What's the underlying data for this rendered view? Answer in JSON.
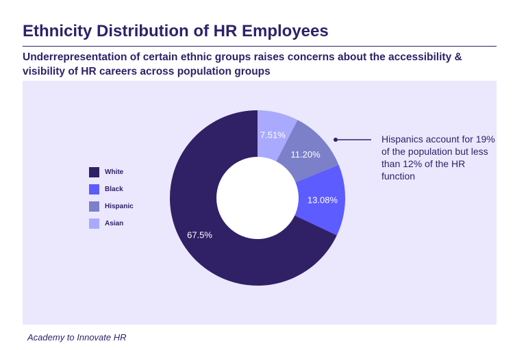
{
  "title": "Ethnicity Distribution of HR Employees",
  "subtitle": "Underrepresentation of certain ethnic groups raises concerns about the accessibility & visibility of HR careers across population groups",
  "annotation": "Hispanics account for 19% of the population but less than 12% of the HR function",
  "footer": "Academy to Innovate HR",
  "chart_data": {
    "type": "pie",
    "subtype": "donut",
    "categories": [
      "Asian",
      "Hispanic",
      "Black",
      "White"
    ],
    "values": [
      7.51,
      11.2,
      13.08,
      67.5
    ],
    "labels": [
      "7.51%",
      "11.20%",
      "13.08%",
      "67.5%"
    ],
    "colors": [
      "#a9aafd",
      "#7b80c9",
      "#5c5cff",
      "#302066"
    ],
    "start_angle": "top, clockwise",
    "legend": {
      "placement": "left",
      "items": [
        {
          "label": "White",
          "color": "#302066"
        },
        {
          "label": "Black",
          "color": "#5c5cff"
        },
        {
          "label": "Hispanic",
          "color": "#7b80c9"
        },
        {
          "label": "Asian",
          "color": "#a9aafd"
        }
      ]
    }
  }
}
